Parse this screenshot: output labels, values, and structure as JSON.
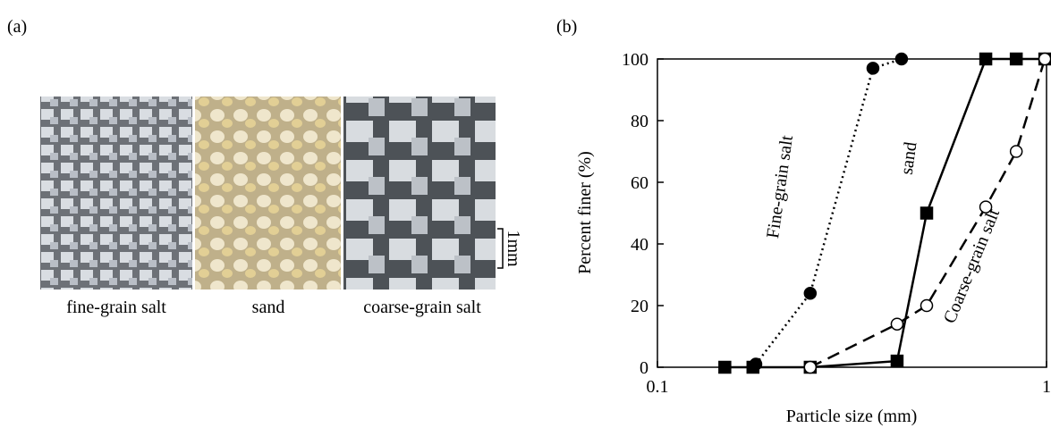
{
  "panel_a": {
    "label": "(a)",
    "captions": [
      "fine-grain salt",
      "sand",
      "coarse-grain salt"
    ],
    "scale_label": "1mm"
  },
  "panel_b_label": "(b)",
  "chart_data": {
    "type": "line",
    "x_label": "Particle size (mm)",
    "y_label": "Percent finer (%)",
    "xscale": "log",
    "xlim": [
      0.1,
      1
    ],
    "xticks": [
      0.1,
      1
    ],
    "ylim": [
      0,
      100
    ],
    "yticks": [
      0,
      20,
      40,
      60,
      80,
      100
    ],
    "series": [
      {
        "name": "Fine-grain salt",
        "color": "#000000",
        "marker": "circle",
        "filled": true,
        "line_style": "dotted",
        "x": [
          0.179,
          0.247,
          0.358,
          0.424
        ],
        "values": [
          1,
          24,
          97,
          100
        ]
      },
      {
        "name": "sand",
        "color": "#000000",
        "marker": "square",
        "filled": true,
        "line_style": "solid",
        "x": [
          0.149,
          0.176,
          0.247,
          0.413,
          0.492,
          0.698,
          0.836,
          0.99
        ],
        "values": [
          0,
          0,
          0,
          2,
          50,
          100,
          100,
          100
        ]
      },
      {
        "name": "Coarse-grain salt",
        "color": "#000000",
        "marker": "circle",
        "filled": false,
        "line_style": "dashed",
        "x": [
          0.247,
          0.413,
          0.492,
          0.698,
          0.836,
          0.99
        ],
        "values": [
          0,
          14,
          20,
          52,
          70,
          100
        ]
      }
    ]
  }
}
